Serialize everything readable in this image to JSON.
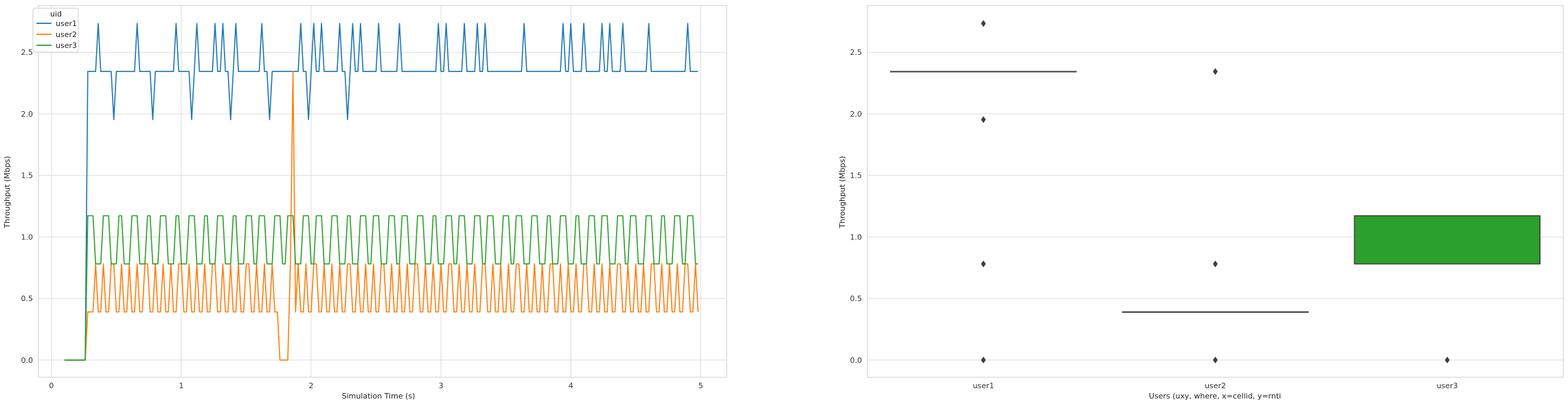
{
  "chart_data": [
    {
      "type": "line",
      "xlabel": "Simulation Time (s)",
      "ylabel": "Throughput (Mbps)",
      "xlim": [
        -0.1,
        5.2
      ],
      "ylim": [
        -0.14,
        2.88
      ],
      "xticks": [
        0,
        1,
        2,
        3,
        4,
        5
      ],
      "yticks": [
        0.0,
        0.5,
        1.0,
        1.5,
        2.0,
        2.5
      ],
      "grid": true,
      "legend": {
        "title": "uid",
        "placement": "top-left"
      },
      "series": [
        {
          "name": "user1",
          "color": "#1f77b4",
          "baseline": 0.0,
          "start": 0.1,
          "ramp": 0.28,
          "step": 0.02,
          "end": 4.98,
          "high": 2.344,
          "peak": 2.734,
          "dip": 1.953,
          "peak_times": [
            0.36,
            0.43,
            0.53,
            0.59,
            0.66,
            0.73,
            0.83,
            0.89,
            0.96,
            1.03,
            1.12,
            1.19,
            1.26,
            1.32,
            1.42,
            1.49,
            1.55,
            1.62,
            1.69,
            1.79,
            1.85,
            1.92,
            2.02,
            2.08,
            2.15,
            2.22,
            2.32,
            2.38,
            2.45,
            2.52,
            2.61,
            2.68,
            2.75,
            2.81,
            2.91,
            2.98,
            3.04,
            3.11,
            3.18,
            3.28,
            3.34,
            3.41,
            3.51,
            3.57,
            3.64,
            3.71,
            3.81,
            3.87,
            3.94,
            4.0,
            4.1,
            4.17,
            4.24,
            4.3,
            4.4,
            4.47,
            4.53,
            4.6,
            4.67,
            4.77,
            4.83,
            4.9
          ],
          "dip_times": [
            0.48,
            0.78,
            1.08,
            1.38,
            1.68,
            1.98,
            2.28
          ]
        },
        {
          "name": "user2",
          "color": "#ff7f0e",
          "baseline": 0.0,
          "start": 0.1,
          "ramp": 0.28,
          "step": 0.02,
          "end": 4.98,
          "low": 0.391,
          "peak": 0.781,
          "peak_start": 0.34,
          "peak_period": 0.065,
          "gap": [
            1.75,
            1.83
          ],
          "spike": {
            "x": 1.86,
            "y": 2.344
          }
        },
        {
          "name": "user3",
          "color": "#2ca02c",
          "baseline": 0.0,
          "start": 0.1,
          "ramp": 0.28,
          "step": 0.02,
          "end": 4.98,
          "high": 1.172,
          "low": 0.781,
          "period": 0.055
        }
      ]
    },
    {
      "type": "box",
      "xlabel": "Users (uxy, where, x=cellid, y=rnti",
      "ylabel": "Throughput (Mbps)",
      "ylim": [
        -0.14,
        2.88
      ],
      "yticks": [
        0.0,
        0.5,
        1.0,
        1.5,
        2.0,
        2.5
      ],
      "grid": true,
      "categories": [
        "user1",
        "user2",
        "user3"
      ],
      "boxes": [
        {
          "color": "#1f77b4",
          "q1": 2.344,
          "median": 2.344,
          "q3": 2.344,
          "whisker_low": 2.344,
          "whisker_high": 2.344,
          "outliers": [
            2.734,
            1.953,
            0.781,
            0.0
          ]
        },
        {
          "color": "#ff7f0e",
          "q1": 0.391,
          "median": 0.391,
          "q3": 0.391,
          "whisker_low": 0.391,
          "whisker_high": 0.391,
          "outliers": [
            2.344,
            0.781,
            0.0
          ]
        },
        {
          "color": "#2ca02c",
          "q1": 0.781,
          "median": 0.781,
          "q3": 1.172,
          "whisker_low": 0.781,
          "whisker_high": 1.172,
          "outliers": [
            0.0
          ]
        }
      ]
    }
  ]
}
